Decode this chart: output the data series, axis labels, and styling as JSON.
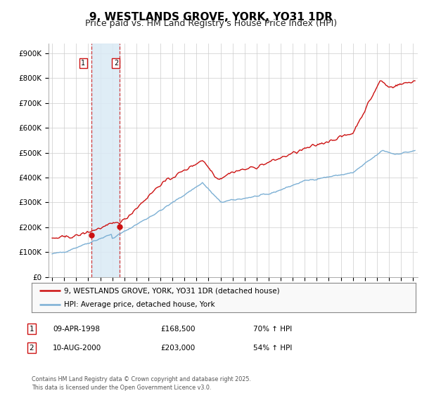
{
  "title": "9, WESTLANDS GROVE, YORK, YO31 1DR",
  "subtitle": "Price paid vs. HM Land Registry's House Price Index (HPI)",
  "title_fontsize": 11,
  "subtitle_fontsize": 9,
  "ylabel_ticks": [
    "£0",
    "£100K",
    "£200K",
    "£300K",
    "£400K",
    "£500K",
    "£600K",
    "£700K",
    "£800K",
    "£900K"
  ],
  "ytick_values": [
    0,
    100000,
    200000,
    300000,
    400000,
    500000,
    600000,
    700000,
    800000,
    900000
  ],
  "ylim": [
    0,
    940000
  ],
  "xlim_start": 1994.7,
  "xlim_end": 2025.4,
  "hpi_color": "#7bafd4",
  "price_color": "#cc1111",
  "sale1_date": 1998.27,
  "sale1_price": 168500,
  "sale2_date": 2000.61,
  "sale2_price": 203000,
  "shade_x1": 1998.27,
  "shade_x2": 2000.61,
  "legend_label1": "9, WESTLANDS GROVE, YORK, YO31 1DR (detached house)",
  "legend_label2": "HPI: Average price, detached house, York",
  "table_row1": [
    "1",
    "09-APR-1998",
    "£168,500",
    "70% ↑ HPI"
  ],
  "table_row2": [
    "2",
    "10-AUG-2000",
    "£203,000",
    "54% ↑ HPI"
  ],
  "footer": "Contains HM Land Registry data © Crown copyright and database right 2025.\nThis data is licensed under the Open Government Licence v3.0.",
  "background_color": "#ffffff",
  "grid_color": "#cccccc"
}
